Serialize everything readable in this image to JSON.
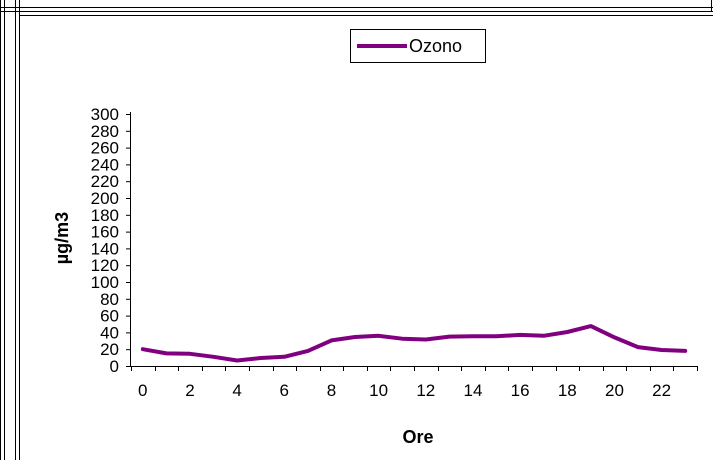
{
  "chart_data": {
    "type": "line",
    "title": "",
    "xlabel": "Ore",
    "ylabel": "µg/m3",
    "x": [
      0,
      1,
      2,
      3,
      4,
      5,
      6,
      7,
      8,
      9,
      10,
      11,
      12,
      13,
      14,
      15,
      16,
      17,
      18,
      19,
      20,
      21,
      22,
      23
    ],
    "x_tick_labels": [
      "0",
      "2",
      "4",
      "6",
      "8",
      "10",
      "12",
      "14",
      "16",
      "18",
      "20",
      "22"
    ],
    "y_tick_labels": [
      "0",
      "20",
      "40",
      "60",
      "80",
      "100",
      "120",
      "140",
      "160",
      "180",
      "200",
      "220",
      "240",
      "260",
      "280",
      "300"
    ],
    "xlim": [
      -0.5,
      23.5
    ],
    "ylim": [
      0,
      300
    ],
    "grid": false,
    "legend_position": "top",
    "series": [
      {
        "name": "Ozono",
        "color": "#800080",
        "values": [
          20,
          15,
          14.5,
          11,
          6.5,
          9.5,
          11,
          18,
          30.5,
          34.5,
          36,
          32.5,
          31.5,
          35,
          35.5,
          35.5,
          37,
          36,
          40.5,
          47.5,
          34,
          22.5,
          19,
          18
        ]
      }
    ]
  }
}
